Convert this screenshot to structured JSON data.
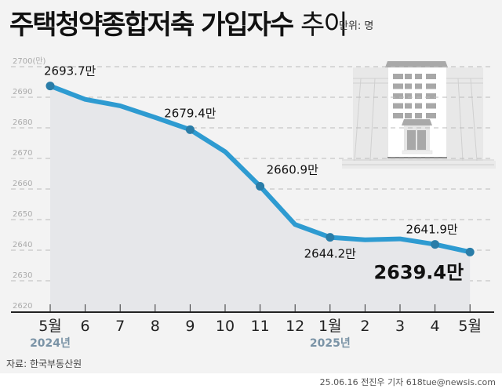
{
  "title": {
    "bold": "주택청약종합저축 가입자수",
    "light": "추이"
  },
  "unit": "단위: 명",
  "source": "자료: 한국부동산원",
  "credit": "25.06.16 전진우 기자 618tue@newsis.com",
  "colors": {
    "line": "#2e9bd1",
    "point": "#2a7da8",
    "area": "#e6e7ea",
    "grid": "#bbbbbb",
    "year": "#7a93a6"
  },
  "chart_data": {
    "type": "line",
    "title": "주택청약종합저축 가입자수 추이",
    "unit": "만",
    "categories": [
      "5월",
      "6",
      "7",
      "8",
      "9",
      "10",
      "11",
      "12",
      "1월",
      "2",
      "3",
      "4",
      "5월"
    ],
    "year_labels": [
      {
        "index": 0,
        "label": "2024년"
      },
      {
        "index": 8,
        "label": "2025년"
      }
    ],
    "series": [
      {
        "name": "가입자수",
        "values": [
          2693.7,
          2689.3,
          2687.2,
          2683.4,
          2679.4,
          2672.2,
          2660.9,
          2648.4,
          2644.2,
          2643.4,
          2643.7,
          2641.9,
          2639.4
        ]
      }
    ],
    "point_markers": [
      0,
      4,
      6,
      8,
      11,
      12
    ],
    "data_labels": [
      {
        "index": 0,
        "text": "2693.7만"
      },
      {
        "index": 4,
        "text": "2679.4만"
      },
      {
        "index": 6,
        "text": "2660.9만"
      },
      {
        "index": 8,
        "text": "2644.2만"
      },
      {
        "index": 11,
        "text": "2641.9만"
      },
      {
        "index": 12,
        "text": "2639.4만"
      }
    ],
    "yticks": [
      "2620",
      "2630",
      "2640",
      "2650",
      "2660",
      "2670",
      "2680",
      "2690",
      "2700(만)"
    ],
    "ylim": [
      2620,
      2700
    ],
    "grid": true,
    "xlabel": "",
    "ylabel": ""
  }
}
